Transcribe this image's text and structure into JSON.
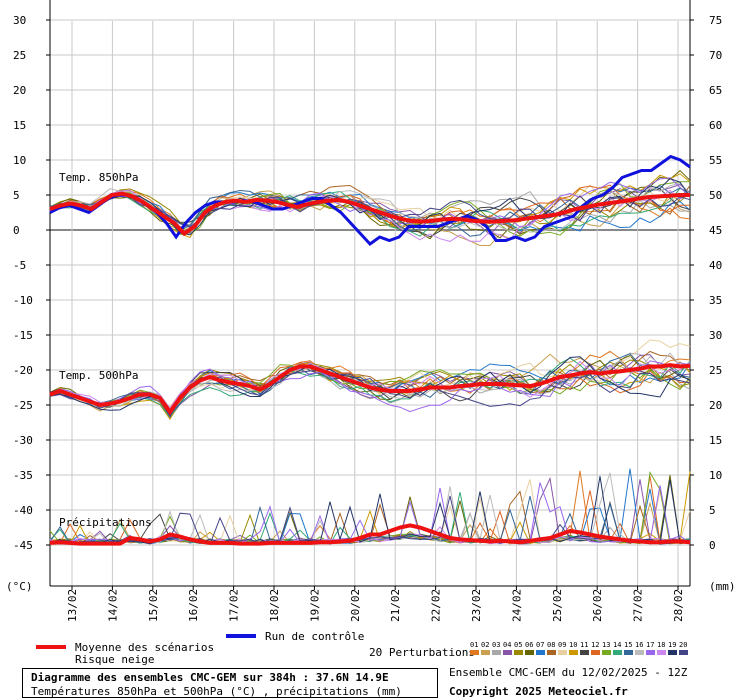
{
  "chart_data": {
    "type": "line",
    "title": "Diagramme des ensembles CMC-GEM sur 384h : 37.6N 14.9E",
    "subtitle": "Températures 850hPa et 500hPa (°C) , précipitations (mm)",
    "ensemble_label": "Ensemble CMC-GEM du 12/02/2025 - 12Z",
    "copyright": "Copyright 2025 Meteociel.fr",
    "left_unit": "(°C)",
    "right_unit": "(mm)",
    "left_axis": {
      "ticks": [
        30,
        25,
        20,
        15,
        10,
        5,
        0,
        -5,
        -10,
        -15,
        -20,
        -25,
        -30,
        -35,
        -40,
        -45
      ],
      "range": [
        -45,
        30
      ]
    },
    "right_axis": {
      "ticks": [
        75,
        70,
        65,
        60,
        55,
        50,
        45,
        40,
        35,
        30,
        25,
        20,
        15,
        10,
        5,
        0
      ],
      "range": [
        0,
        75
      ]
    },
    "x_labels": [
      "13/02",
      "14/02",
      "15/02",
      "16/02",
      "17/02",
      "18/02",
      "19/02",
      "20/02",
      "21/02",
      "22/02",
      "23/02",
      "24/02",
      "25/02",
      "26/02",
      "27/02",
      "28/02"
    ],
    "panel_labels": {
      "t850": "Temp. 850hPa",
      "t500": "Temp. 500hPa",
      "precip": "Précipitations"
    },
    "legend": {
      "mean": "Moyenne des scénarios",
      "snow": "Risque neige",
      "control": "Run de contrôle",
      "perturbations": "20 Perturbations",
      "pert_numbers": [
        "01",
        "02",
        "03",
        "04",
        "05",
        "06",
        "07",
        "08",
        "09",
        "10",
        "11",
        "12",
        "13",
        "14",
        "15",
        "16",
        "17",
        "18",
        "19",
        "20"
      ]
    },
    "colors": {
      "mean": "#ee1111",
      "control": "#1111dd",
      "perturbations": [
        "#e07820",
        "#c8a050",
        "#a8a8a8",
        "#8855aa",
        "#998800",
        "#666600",
        "#2277cc",
        "#aa6622",
        "#e8d0a0",
        "#cc9900",
        "#444444",
        "#dd6622",
        "#77aa22",
        "#33aa77",
        "#336699",
        "#bbbbbb",
        "#9966ee",
        "#cc88ee",
        "#223366",
        "#444488"
      ]
    },
    "series": [
      {
        "name": "Moyenne 850hPa",
        "values": [
          3.0,
          3.5,
          3.8,
          3.5,
          3.0,
          4.0,
          5.0,
          5.2,
          4.8,
          4.0,
          3.0,
          2.0,
          1.0,
          -0.5,
          0.5,
          2.5,
          3.5,
          4.0,
          4.2,
          4.0,
          4.3,
          4.2,
          4.0,
          3.6,
          3.3,
          3.7,
          4.0,
          4.2,
          4.3,
          4.0,
          3.5,
          3.0,
          2.5,
          2.0,
          1.6,
          1.3,
          1.2,
          1.3,
          1.5,
          1.6,
          1.5,
          1.3,
          1.2,
          1.2,
          1.3,
          1.4,
          1.6,
          1.8,
          2.0,
          2.2,
          2.6,
          3.0,
          3.3,
          3.6,
          3.8,
          4.0,
          4.2,
          4.5,
          4.7,
          4.8,
          4.9,
          5.0,
          5.0
        ]
      },
      {
        "name": "Contrôle 850hPa",
        "values": [
          2.5,
          3.2,
          3.5,
          3.0,
          2.5,
          3.5,
          4.5,
          5.0,
          5.0,
          4.5,
          3.5,
          2.5,
          1.0,
          -1.0,
          1.0,
          2.5,
          3.5,
          4.0,
          4.0,
          4.0,
          4.2,
          4.0,
          3.5,
          3.0,
          3.0,
          3.5,
          4.0,
          4.5,
          4.5,
          3.5,
          2.5,
          1.0,
          -0.5,
          -2.0,
          -1.0,
          -1.5,
          -1.0,
          0.5,
          0.5,
          0.5,
          0.5,
          1.0,
          1.5,
          2.0,
          1.5,
          0.5,
          -1.5,
          -1.5,
          -1.0,
          -1.5,
          -1.0,
          0.5,
          1.0,
          1.5,
          2.0,
          3.5,
          4.5,
          5.0,
          6.0,
          7.5,
          8.0,
          8.5,
          8.5,
          9.5,
          10.5,
          10.0,
          9.0
        ]
      },
      {
        "name": "Moyenne 500hPa",
        "values": [
          -23.5,
          -23.0,
          -23.5,
          -24.0,
          -24.5,
          -25.0,
          -24.8,
          -24.5,
          -24.0,
          -23.5,
          -23.5,
          -24.0,
          -26.0,
          -24.0,
          -22.5,
          -21.5,
          -21.0,
          -21.5,
          -21.8,
          -22.0,
          -22.3,
          -22.8,
          -22.0,
          -21.0,
          -20.0,
          -19.5,
          -19.5,
          -20.0,
          -20.5,
          -21.0,
          -21.5,
          -22.0,
          -22.5,
          -22.8,
          -23.0,
          -23.0,
          -23.0,
          -22.8,
          -22.5,
          -22.5,
          -22.5,
          -22.3,
          -22.2,
          -22.0,
          -22.0,
          -22.0,
          -22.1,
          -22.2,
          -22.3,
          -22.0,
          -21.5,
          -21.0,
          -20.8,
          -20.5,
          -20.3,
          -20.5,
          -20.3,
          -20.2,
          -20.0,
          -19.8,
          -19.5,
          -19.5,
          -19.3,
          -19.5,
          -19.4
        ]
      },
      {
        "name": "Moyenne précipitations",
        "values": [
          0.3,
          0.4,
          0.3,
          0.2,
          0.2,
          0.2,
          0.2,
          0.2,
          1.0,
          0.8,
          0.5,
          0.8,
          1.5,
          1.2,
          0.8,
          0.5,
          0.3,
          0.3,
          0.3,
          0.2,
          0.2,
          0.2,
          0.3,
          0.3,
          0.3,
          0.3,
          0.3,
          0.4,
          0.4,
          0.5,
          0.6,
          1.0,
          1.5,
          1.5,
          2.0,
          2.5,
          2.8,
          2.5,
          2.0,
          1.5,
          1.0,
          0.8,
          0.7,
          0.6,
          0.5,
          0.6,
          0.5,
          0.4,
          0.6,
          0.8,
          1.0,
          1.5,
          2.0,
          1.8,
          1.5,
          1.2,
          1.0,
          0.8,
          0.6,
          0.5,
          0.4,
          0.4,
          0.5,
          0.5,
          0.4
        ]
      }
    ]
  }
}
